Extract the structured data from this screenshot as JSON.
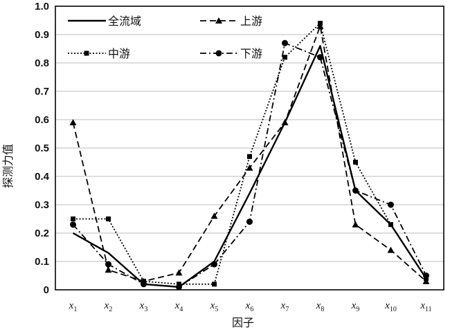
{
  "chart_data": {
    "type": "line",
    "title": "",
    "xlabel": "因子",
    "ylabel": "探测力值",
    "ylim": [
      0,
      1.0
    ],
    "yticks": [
      "0",
      "0.1",
      "0.2",
      "0.3",
      "0.4",
      "0.5",
      "0.6",
      "0.7",
      "0.8",
      "0.9",
      "1.0"
    ],
    "categories": [
      {
        "base": "x",
        "sub": "1"
      },
      {
        "base": "x",
        "sub": "2"
      },
      {
        "base": "x",
        "sub": "3"
      },
      {
        "base": "x",
        "sub": "4"
      },
      {
        "base": "x",
        "sub": "5"
      },
      {
        "base": "x",
        "sub": "6"
      },
      {
        "base": "x",
        "sub": "7"
      },
      {
        "base": "x",
        "sub": "8"
      },
      {
        "base": "x",
        "sub": "9"
      },
      {
        "base": "x",
        "sub": "10"
      },
      {
        "base": "x",
        "sub": "11"
      }
    ],
    "grid": "horizontal",
    "legend_position": "top-left",
    "series": [
      {
        "name": "全流域",
        "style": "solid",
        "marker": "none",
        "color": "#000000",
        "values": [
          0.2,
          0.13,
          0.02,
          0.01,
          0.1,
          0.34,
          0.59,
          0.86,
          0.35,
          0.23,
          0.04
        ]
      },
      {
        "name": "上游",
        "style": "dashed",
        "marker": "triangle",
        "color": "#000000",
        "values": [
          0.59,
          0.07,
          0.03,
          0.06,
          0.26,
          0.43,
          0.59,
          0.93,
          0.23,
          0.14,
          0.03
        ]
      },
      {
        "name": "中游",
        "style": "dotted",
        "marker": "square",
        "color": "#000000",
        "values": [
          0.25,
          0.25,
          0.03,
          0.02,
          0.02,
          0.47,
          0.82,
          0.94,
          0.45,
          0.23,
          0.04
        ]
      },
      {
        "name": "下游",
        "style": "dashdot",
        "marker": "circle",
        "color": "#000000",
        "values": [
          0.23,
          0.09,
          0.02,
          0.01,
          0.09,
          0.24,
          0.87,
          0.82,
          0.35,
          0.3,
          0.05
        ]
      }
    ]
  }
}
